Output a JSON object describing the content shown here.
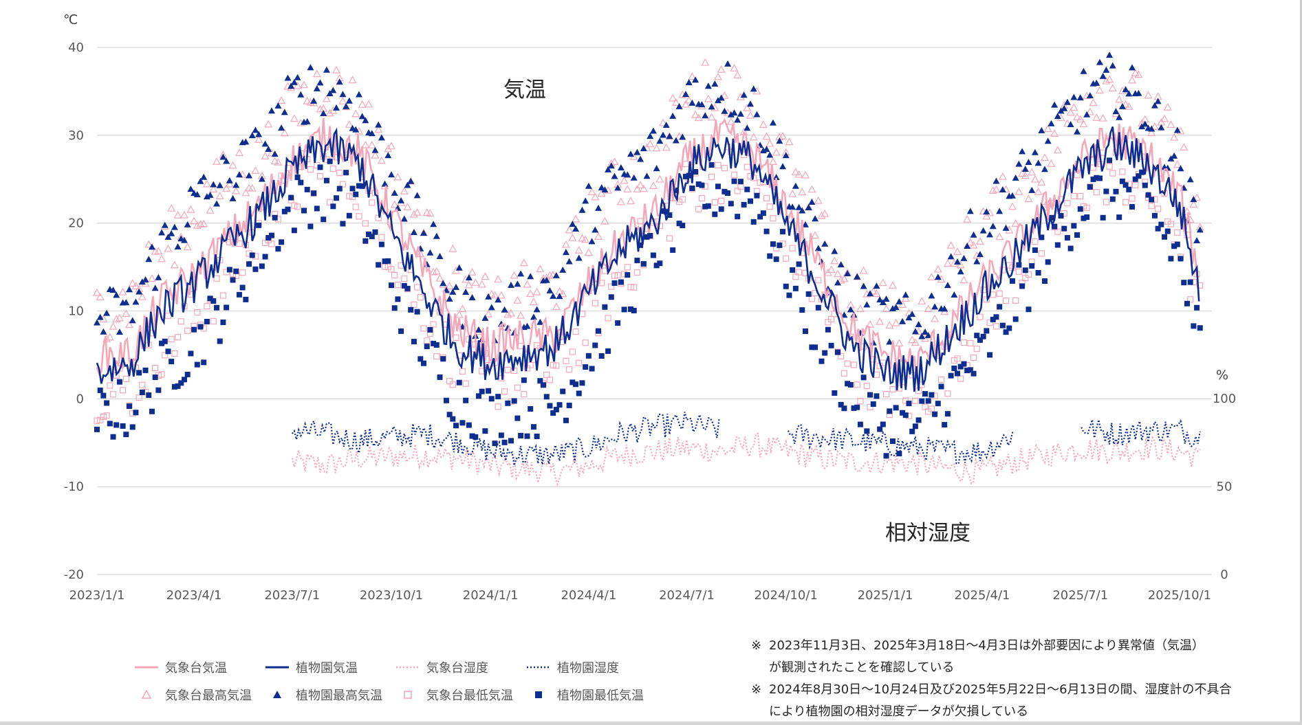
{
  "colors": {
    "jma": "#f4a7b9",
    "garden": "#0d2d8f",
    "grid": "#d9d9d9",
    "text": "#404040"
  },
  "legend": {
    "jma_temp": "気象台気温",
    "garden_temp": "植物園気温",
    "jma_humidity": "気象台湿度",
    "garden_humidity": "植物園湿度",
    "jma_max": "気象台最高気温",
    "garden_max": "植物園最高気温",
    "jma_min": "気象台最低気温",
    "garden_min": "植物園最低気温"
  },
  "notes": [
    {
      "mark": "※",
      "line1": "2023年11月3日、2025年3月18日～4月3日は外部要因により異常値（気温）",
      "line2": "が観測されたことを確認している"
    },
    {
      "mark": "※",
      "line1": "2024年8月30日～10月24日及び2025年5月22日～6月13日の間、湿度計の不具合",
      "line2": "により植物園の相対湿度データが欠損している"
    }
  ],
  "chart_data": {
    "type": "line",
    "title": "",
    "annotations": [
      "気温",
      "相対湿度"
    ],
    "xlabel": "",
    "x_range": [
      "2023-01-01",
      "2025-10-20"
    ],
    "x_ticks": [
      "2023/1/1",
      "2023/4/1",
      "2023/7/1",
      "2023/10/1",
      "2024/1/1",
      "2024/4/1",
      "2024/7/1",
      "2024/10/1",
      "2025/1/1",
      "2025/4/1",
      "2025/7/1",
      "2025/10/1"
    ],
    "y_left": {
      "unit": "℃",
      "range": [
        -20,
        40
      ],
      "ticks": [
        40,
        30,
        20,
        10,
        0,
        -10,
        -20
      ]
    },
    "y_right": {
      "unit": "%",
      "range": [
        0,
        100
      ],
      "ticks": [
        100,
        50,
        0
      ],
      "note": "right axis labels align with left 0 (=100%), -10 (=50%), -20 (=0%)"
    },
    "grid": true,
    "legend_position": "bottom-left",
    "series": [
      {
        "name": "気象台気温",
        "style": "line-pink",
        "x": [
          "2023-01-01",
          "2023-02-01",
          "2023-03-01",
          "2023-04-01",
          "2023-05-01",
          "2023-06-01",
          "2023-07-01",
          "2023-08-01",
          "2023-09-01",
          "2023-10-01",
          "2023-11-01",
          "2023-12-01",
          "2024-01-01",
          "2024-02-01",
          "2024-03-01",
          "2024-04-01",
          "2024-05-01",
          "2024-06-01",
          "2024-07-01",
          "2024-08-01",
          "2024-09-01",
          "2024-10-01",
          "2024-11-01",
          "2024-12-01",
          "2025-01-01",
          "2025-02-01",
          "2025-03-01",
          "2025-04-01",
          "2025-05-01",
          "2025-06-01",
          "2025-07-01",
          "2025-08-01",
          "2025-09-01",
          "2025-10-01",
          "2025-10-20"
        ],
        "values": [
          5,
          5,
          11,
          14,
          18,
          22,
          27,
          30,
          28,
          21,
          14,
          8,
          6,
          7,
          7,
          13,
          18,
          21,
          27,
          30,
          28,
          22,
          15,
          8,
          5,
          4,
          8,
          13,
          17,
          22,
          27,
          30,
          28,
          23,
          14
        ]
      },
      {
        "name": "植物園気温",
        "style": "line-navy",
        "x": [
          "2023-01-01",
          "2023-02-01",
          "2023-03-01",
          "2023-04-01",
          "2023-05-01",
          "2023-06-01",
          "2023-07-01",
          "2023-08-01",
          "2023-09-01",
          "2023-10-01",
          "2023-11-01",
          "2023-12-01",
          "2024-01-01",
          "2024-02-01",
          "2024-03-01",
          "2024-04-01",
          "2024-05-01",
          "2024-06-01",
          "2024-07-01",
          "2024-08-01",
          "2024-09-01",
          "2024-10-01",
          "2024-11-01",
          "2024-12-01",
          "2025-01-01",
          "2025-02-01",
          "2025-03-01",
          "2025-04-01",
          "2025-05-01",
          "2025-06-01",
          "2025-07-01",
          "2025-08-01",
          "2025-09-01",
          "2025-10-01",
          "2025-10-20"
        ],
        "values": [
          3,
          4,
          10,
          13,
          17,
          21,
          26,
          29,
          27,
          19,
          12,
          6,
          4,
          5,
          6,
          12,
          17,
          20,
          26,
          29,
          27,
          20,
          13,
          6,
          3,
          3,
          7,
          12,
          16,
          21,
          26,
          29,
          27,
          22,
          12
        ]
      },
      {
        "name": "気象台最高気温",
        "style": "marker-open-triangle-pink",
        "x": [
          "2023-01-01",
          "2023-02-01",
          "2023-03-01",
          "2023-04-01",
          "2023-05-01",
          "2023-06-01",
          "2023-07-01",
          "2023-08-01",
          "2023-09-01",
          "2023-10-01",
          "2023-11-01",
          "2023-12-01",
          "2024-01-01",
          "2024-02-01",
          "2024-03-01",
          "2024-04-01",
          "2024-05-01",
          "2024-06-01",
          "2024-07-01",
          "2024-08-01",
          "2024-09-01",
          "2024-10-01",
          "2024-11-01",
          "2024-12-01",
          "2025-01-01",
          "2025-02-01",
          "2025-03-01",
          "2025-04-01",
          "2025-05-01",
          "2025-06-01",
          "2025-07-01",
          "2025-08-01",
          "2025-09-01",
          "2025-10-01",
          "2025-10-20"
        ],
        "values": [
          10,
          11,
          17,
          21,
          25,
          27,
          33,
          36,
          33,
          26,
          19,
          13,
          10,
          12,
          13,
          20,
          25,
          27,
          34,
          36,
          33,
          27,
          19,
          12,
          10,
          9,
          14,
          20,
          23,
          28,
          34,
          36,
          33,
          28,
          19
        ]
      },
      {
        "name": "植物園最高気温",
        "style": "marker-filled-triangle-navy",
        "x": [
          "2023-01-01",
          "2023-02-01",
          "2023-03-01",
          "2023-04-01",
          "2023-05-01",
          "2023-06-01",
          "2023-07-01",
          "2023-08-01",
          "2023-09-01",
          "2023-10-01",
          "2023-11-01",
          "2023-12-01",
          "2024-01-01",
          "2024-02-01",
          "2024-03-01",
          "2024-04-01",
          "2024-05-01",
          "2024-06-01",
          "2024-07-01",
          "2024-08-01",
          "2024-09-01",
          "2024-10-01",
          "2024-11-01",
          "2024-12-01",
          "2025-01-01",
          "2025-02-01",
          "2025-03-01",
          "2025-04-01",
          "2025-05-01",
          "2025-06-01",
          "2025-07-01",
          "2025-08-01",
          "2025-09-01",
          "2025-10-01",
          "2025-10-20"
        ],
        "values": [
          9,
          10,
          17,
          22,
          25,
          28,
          34,
          36,
          33,
          26,
          18,
          12,
          9,
          11,
          13,
          21,
          25,
          28,
          34,
          36,
          33,
          26,
          17,
          11,
          9,
          8,
          14,
          20,
          24,
          29,
          34,
          36,
          33,
          27,
          17
        ]
      },
      {
        "name": "気象台最低気温",
        "style": "marker-open-square-pink",
        "x": [
          "2023-01-01",
          "2023-02-01",
          "2023-03-01",
          "2023-04-01",
          "2023-05-01",
          "2023-06-01",
          "2023-07-01",
          "2023-08-01",
          "2023-09-01",
          "2023-10-01",
          "2023-11-01",
          "2023-12-01",
          "2024-01-01",
          "2024-02-01",
          "2024-03-01",
          "2024-04-01",
          "2024-05-01",
          "2024-06-01",
          "2024-07-01",
          "2024-08-01",
          "2024-09-01",
          "2024-10-01",
          "2024-11-01",
          "2024-12-01",
          "2025-01-01",
          "2025-02-01",
          "2025-03-01",
          "2025-04-01",
          "2025-05-01",
          "2025-06-01",
          "2025-07-01",
          "2025-08-01",
          "2025-09-01",
          "2025-10-01",
          "2025-10-20"
        ],
        "values": [
          1,
          1,
          6,
          9,
          14,
          19,
          24,
          26,
          24,
          17,
          10,
          4,
          2,
          3,
          3,
          9,
          14,
          19,
          24,
          26,
          25,
          18,
          11,
          4,
          1,
          0,
          4,
          9,
          14,
          19,
          24,
          26,
          24,
          19,
          10
        ]
      },
      {
        "name": "植物園最低気温",
        "style": "marker-filled-square-navy",
        "x": [
          "2023-01-01",
          "2023-02-01",
          "2023-03-01",
          "2023-04-01",
          "2023-05-01",
          "2023-06-01",
          "2023-07-01",
          "2023-08-01",
          "2023-09-01",
          "2023-10-01",
          "2023-11-01",
          "2023-12-01",
          "2024-01-01",
          "2024-02-01",
          "2024-03-01",
          "2024-04-01",
          "2024-05-01",
          "2024-06-01",
          "2024-07-01",
          "2024-08-01",
          "2024-09-01",
          "2024-10-01",
          "2024-11-01",
          "2024-12-01",
          "2025-01-01",
          "2025-02-01",
          "2025-03-01",
          "2025-04-01",
          "2025-05-01",
          "2025-06-01",
          "2025-07-01",
          "2025-08-01",
          "2025-09-01",
          "2025-10-01",
          "2025-10-20"
        ],
        "values": [
          -2,
          -1,
          3,
          6,
          11,
          17,
          22,
          24,
          22,
          13,
          6,
          0,
          -2,
          -1,
          -1,
          5,
          11,
          17,
          22,
          24,
          23,
          15,
          7,
          0,
          -3,
          -3,
          1,
          5,
          11,
          17,
          22,
          24,
          22,
          16,
          6
        ]
      },
      {
        "name": "気象台湿度",
        "style": "dotted-pink",
        "axis": "right",
        "x": [
          "2023-07-01",
          "2023-08-01",
          "2023-09-01",
          "2023-10-01",
          "2023-11-01",
          "2023-12-01",
          "2024-01-01",
          "2024-02-01",
          "2024-03-01",
          "2024-04-01",
          "2024-05-01",
          "2024-06-01",
          "2024-07-01",
          "2024-08-01",
          "2024-09-01",
          "2024-10-01",
          "2024-11-01",
          "2024-12-01",
          "2025-01-01",
          "2025-02-01",
          "2025-03-01",
          "2025-04-01",
          "2025-05-01",
          "2025-06-01",
          "2025-07-01",
          "2025-08-01",
          "2025-09-01",
          "2025-10-01",
          "2025-10-20"
        ],
        "values": [
          64,
          62,
          66,
          67,
          68,
          66,
          62,
          60,
          58,
          62,
          68,
          70,
          72,
          70,
          74,
          70,
          66,
          64,
          64,
          63,
          60,
          58,
          64,
          68,
          72,
          70,
          72,
          70,
          66
        ]
      },
      {
        "name": "植物園湿度",
        "style": "dotted-navy",
        "axis": "right",
        "x": [
          "2023-07-01",
          "2023-08-01",
          "2023-09-01",
          "2023-10-01",
          "2023-11-01",
          "2023-12-01",
          "2024-01-01",
          "2024-02-01",
          "2024-03-01",
          "2024-04-01",
          "2024-05-01",
          "2024-06-01",
          "2024-07-01",
          "2024-08-01",
          "2024-09-01",
          "2024-10-01",
          "2024-11-01",
          "2024-12-01",
          "2025-01-01",
          "2025-02-01",
          "2025-03-01",
          "2025-04-01",
          "2025-05-01",
          "2025-06-01",
          "2025-07-01",
          "2025-08-01",
          "2025-09-01",
          "2025-10-01",
          "2025-10-20"
        ],
        "values": [
          82,
          80,
          76,
          78,
          80,
          76,
          70,
          68,
          68,
          72,
          80,
          84,
          86,
          82,
          null,
          80,
          78,
          76,
          74,
          72,
          70,
          70,
          80,
          null,
          84,
          80,
          82,
          82,
          78
        ]
      }
    ]
  }
}
